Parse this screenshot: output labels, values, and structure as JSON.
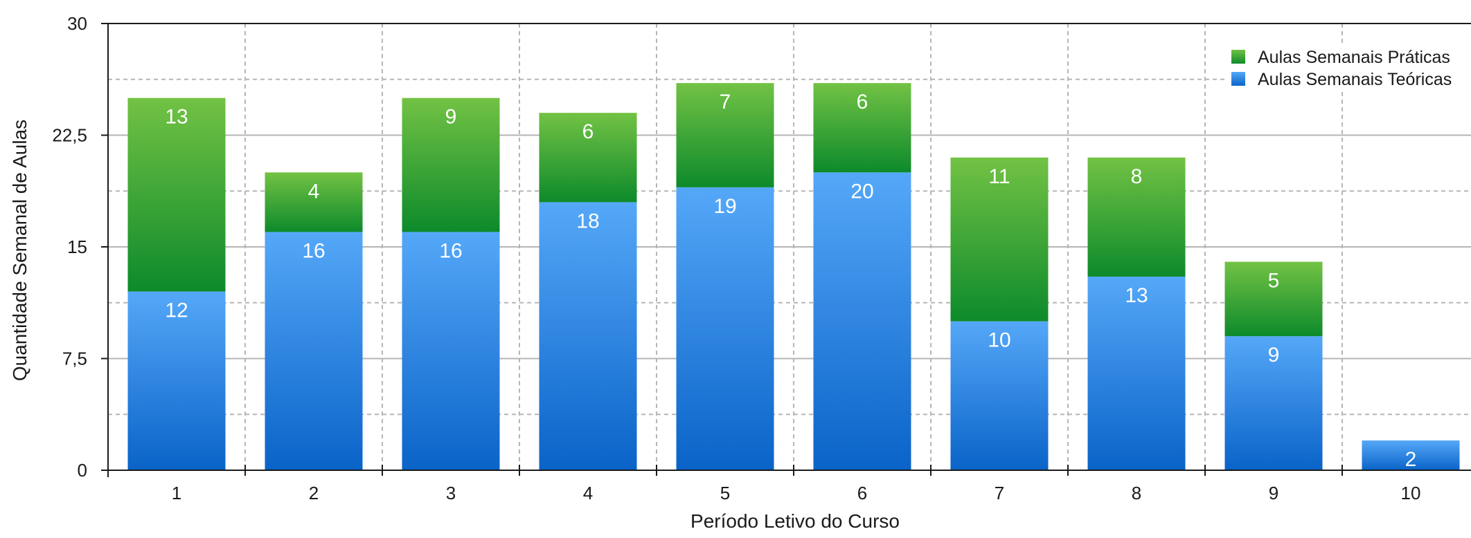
{
  "chart_data": {
    "type": "bar",
    "stacked": true,
    "title": "",
    "xlabel": "Período Letivo do Curso",
    "ylabel": "Quantidade Semanal de Aulas",
    "categories": [
      "1",
      "2",
      "3",
      "4",
      "5",
      "6",
      "7",
      "8",
      "9",
      "10"
    ],
    "series": [
      {
        "name": "Aulas Semanais Teóricas",
        "values": [
          12,
          16,
          16,
          18,
          19,
          20,
          10,
          13,
          9,
          2
        ],
        "color_top": "#55a8f8",
        "color_bottom": "#0a63c8"
      },
      {
        "name": "Aulas Semanais Práticas",
        "values": [
          13,
          4,
          9,
          6,
          7,
          6,
          11,
          8,
          5,
          0
        ],
        "color_top": "#72c244",
        "color_bottom": "#0d8a2b"
      }
    ],
    "ylim": [
      0,
      30
    ],
    "yticks": [
      0,
      7.5,
      15,
      22.5,
      30
    ],
    "ytick_labels": [
      "0",
      "7,5",
      "15",
      "22,5",
      "30"
    ],
    "grid": true,
    "legend": {
      "position": "top-right",
      "entries": [
        "Aulas Semanais Práticas",
        "Aulas Semanais Teóricas"
      ]
    }
  }
}
